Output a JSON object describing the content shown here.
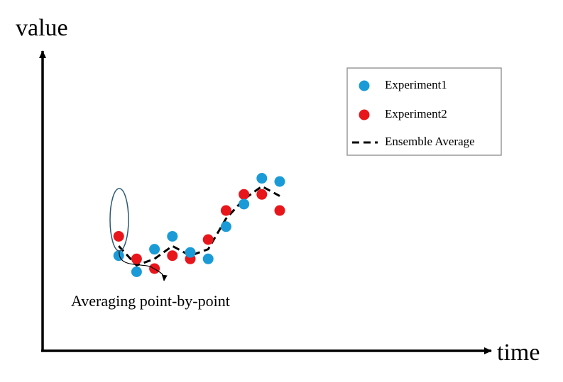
{
  "chart_data": {
    "type": "scatter",
    "title": "",
    "xlabel": "time",
    "ylabel": "value",
    "x_ticks": [],
    "y_ticks": [],
    "grid": false,
    "xlim": [
      0,
      13.5
    ],
    "ylim": [
      0,
      10
    ],
    "x": [
      1,
      2,
      3,
      4,
      5,
      6,
      7,
      8,
      9,
      10
    ],
    "series": [
      {
        "name": "Experiment1",
        "kind": "points",
        "color": "#1a9bd7",
        "values": [
          3.5,
          3.0,
          3.7,
          4.1,
          3.6,
          3.4,
          4.4,
          5.1,
          5.9,
          5.8
        ]
      },
      {
        "name": "Experiment2",
        "kind": "points",
        "color": "#e8161b",
        "values": [
          4.1,
          3.4,
          3.1,
          3.5,
          3.4,
          4.0,
          4.9,
          5.4,
          5.4,
          4.9
        ]
      },
      {
        "name": "Ensemble Average",
        "kind": "dashed-line",
        "color": "#000000",
        "values": [
          3.8,
          3.2,
          3.4,
          3.8,
          3.5,
          3.7,
          4.65,
          5.25,
          5.65,
          5.35
        ]
      }
    ],
    "legend": {
      "position": "top-right",
      "entries": [
        "Experiment1",
        "Experiment2",
        "Ensemble Average"
      ]
    },
    "annotations": [
      {
        "text": "Averaging point-by-point",
        "target_x": 1
      }
    ]
  }
}
